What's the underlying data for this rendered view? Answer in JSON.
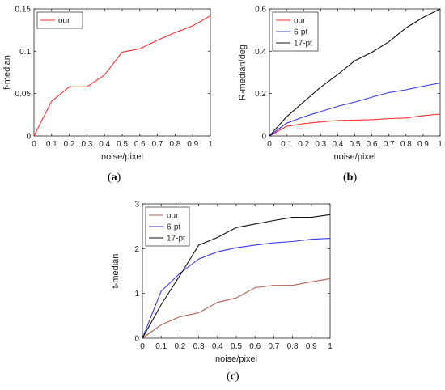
{
  "chart_data": [
    {
      "type": "line",
      "panel_label": "a",
      "xlabel": "noise/pixel",
      "ylabel": "f-median",
      "xlim": [
        0,
        1
      ],
      "ylim": [
        0,
        0.15
      ],
      "xticks": [
        0,
        0.1,
        0.2,
        0.3,
        0.4,
        0.5,
        0.6,
        0.7,
        0.8,
        0.9,
        1
      ],
      "xtick_labels": [
        "0",
        "0.1",
        "0.2",
        "0.3",
        "0.4",
        "0.5",
        "0.6",
        "0.7",
        "0.8",
        "0.9",
        "1"
      ],
      "yticks": [
        0,
        0.05,
        0.1,
        0.15
      ],
      "ytick_labels": [
        "0",
        "0.05",
        "0.1",
        "0.15"
      ],
      "legend_position": "top-left",
      "x": [
        0,
        0.1,
        0.2,
        0.3,
        0.4,
        0.5,
        0.6,
        0.7,
        0.8,
        0.9,
        1
      ],
      "series": [
        {
          "name": "our",
          "color": "#ff3030",
          "values": [
            0,
            0.041,
            0.058,
            0.058,
            0.072,
            0.099,
            0.103,
            0.113,
            0.122,
            0.13,
            0.142
          ]
        }
      ]
    },
    {
      "type": "line",
      "panel_label": "b",
      "xlabel": "noise/pixel",
      "ylabel": "R-median/deg",
      "xlim": [
        0,
        1
      ],
      "ylim": [
        0,
        0.6
      ],
      "xticks": [
        0,
        0.1,
        0.2,
        0.3,
        0.4,
        0.5,
        0.6,
        0.7,
        0.8,
        0.9,
        1
      ],
      "xtick_labels": [
        "0",
        "0.1",
        "0.2",
        "0.3",
        "0.4",
        "0.5",
        "0.6",
        "0.7",
        "0.8",
        "0.9",
        "1"
      ],
      "yticks": [
        0,
        0.2,
        0.4,
        0.6
      ],
      "ytick_labels": [
        "0",
        "0.2",
        "0.4",
        "0.6"
      ],
      "legend_position": "top-left",
      "x": [
        0,
        0.1,
        0.2,
        0.3,
        0.4,
        0.5,
        0.6,
        0.7,
        0.8,
        0.9,
        1
      ],
      "series": [
        {
          "name": "our",
          "color": "#ff3030",
          "values": [
            0,
            0.045,
            0.058,
            0.066,
            0.073,
            0.075,
            0.077,
            0.082,
            0.085,
            0.096,
            0.103
          ]
        },
        {
          "name": "6-pt",
          "color": "#3a3af0",
          "values": [
            0,
            0.06,
            0.09,
            0.115,
            0.14,
            0.16,
            0.183,
            0.205,
            0.218,
            0.235,
            0.25
          ]
        },
        {
          "name": "17-pt",
          "color": "#101010",
          "values": [
            0,
            0.09,
            0.16,
            0.23,
            0.29,
            0.355,
            0.395,
            0.445,
            0.51,
            0.56,
            0.6
          ]
        }
      ]
    },
    {
      "type": "line",
      "panel_label": "c",
      "xlabel": "noise/pixel",
      "ylabel": "t-median",
      "xlim": [
        0,
        1
      ],
      "ylim": [
        0,
        3
      ],
      "xticks": [
        0,
        0.1,
        0.2,
        0.3,
        0.4,
        0.5,
        0.6,
        0.7,
        0.8,
        0.9,
        1
      ],
      "xtick_labels": [
        "0",
        "0.1",
        "0.2",
        "0.3",
        "0.4",
        "0.5",
        "0.6",
        "0.7",
        "0.8",
        "0.9",
        "1"
      ],
      "yticks": [
        0,
        1,
        2,
        3
      ],
      "ytick_labels": [
        "0",
        "1",
        "2",
        "3"
      ],
      "legend_position": "top-left",
      "x": [
        0,
        0.1,
        0.2,
        0.3,
        0.4,
        0.5,
        0.6,
        0.7,
        0.8,
        0.9,
        1
      ],
      "series": [
        {
          "name": "our",
          "color": "#b06050",
          "values": [
            0,
            0.3,
            0.48,
            0.57,
            0.8,
            0.9,
            1.13,
            1.18,
            1.18,
            1.26,
            1.33
          ]
        },
        {
          "name": "6-pt",
          "color": "#3a3af0",
          "values": [
            0,
            1.05,
            1.45,
            1.77,
            1.93,
            2.02,
            2.08,
            2.13,
            2.16,
            2.21,
            2.23
          ]
        },
        {
          "name": "17-pt",
          "color": "#101010",
          "values": [
            0,
            0.75,
            1.4,
            2.08,
            2.25,
            2.47,
            2.55,
            2.63,
            2.7,
            2.7,
            2.76
          ]
        }
      ]
    }
  ]
}
